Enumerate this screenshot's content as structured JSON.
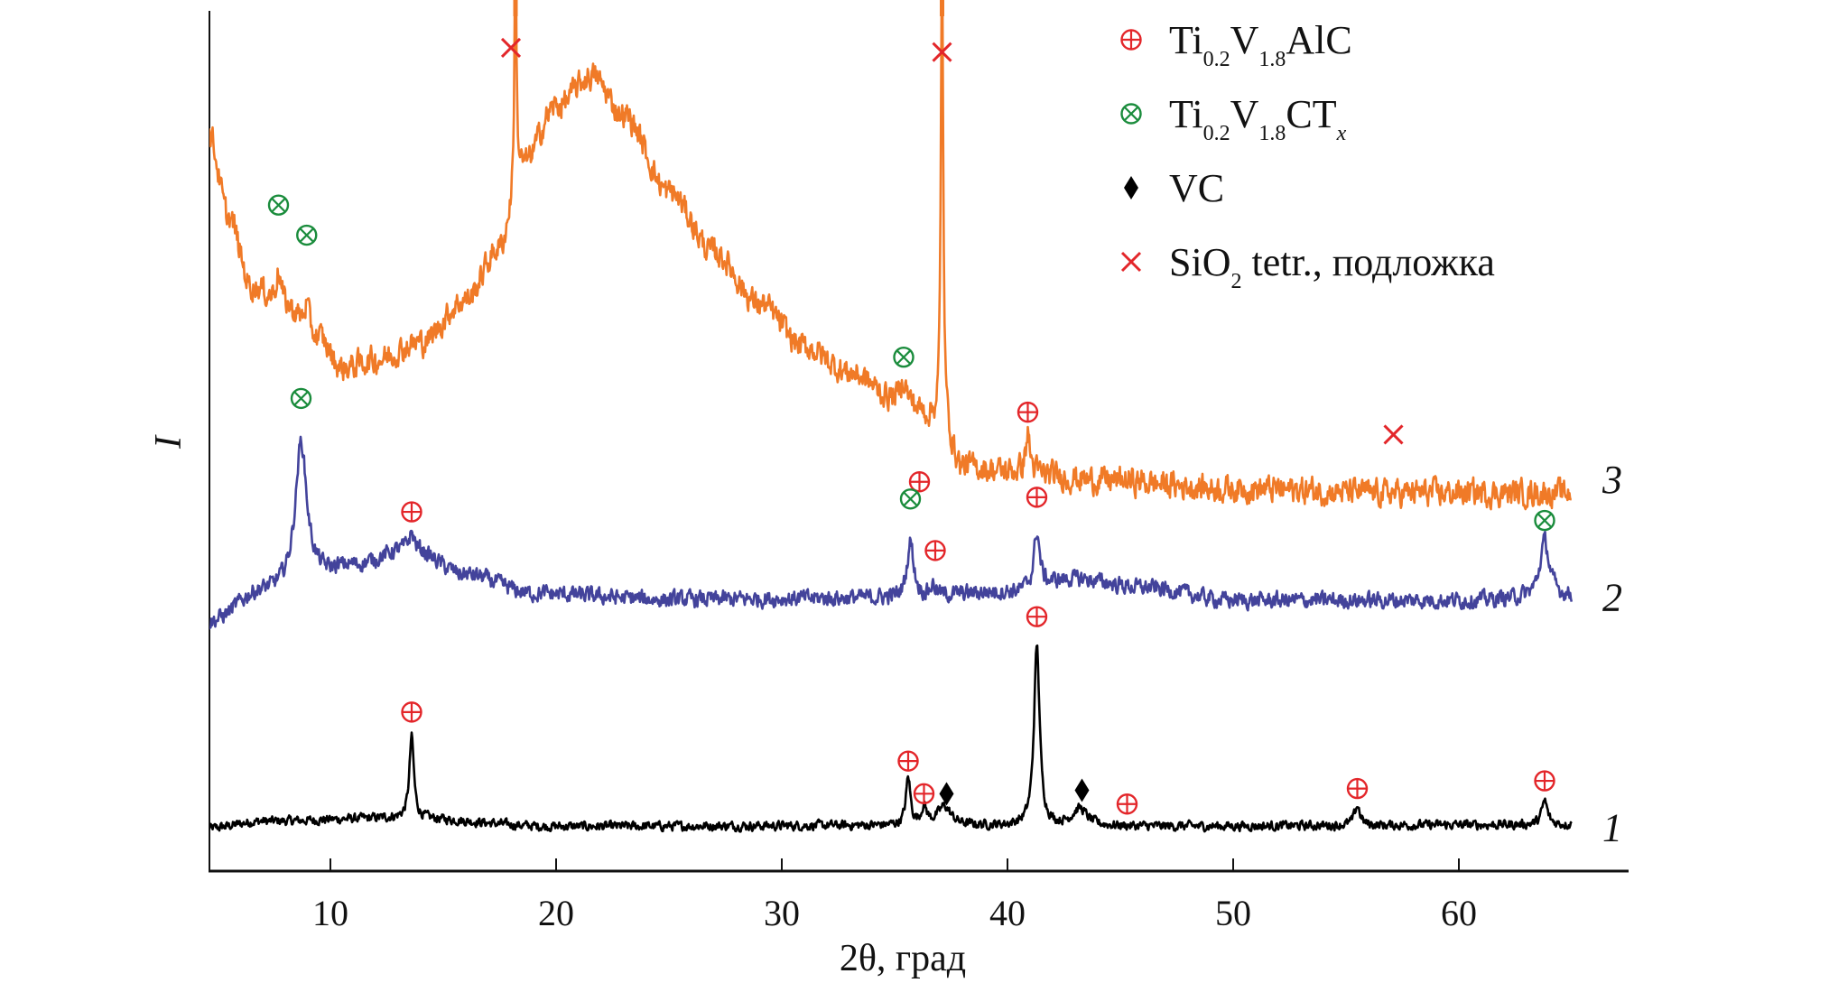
{
  "chart_data": {
    "type": "line",
    "title": "",
    "xlabel": "2θ, град",
    "ylabel": "I",
    "xlim": [
      4.6,
      67.2
    ],
    "ylim": [
      0,
      100
    ],
    "xticks": [
      10,
      20,
      30,
      40,
      50,
      60
    ],
    "grid": false,
    "legend_placement": "top-right",
    "legend": [
      {
        "symbol": "circle-plus",
        "color": "#e3262a",
        "parts": [
          [
            "Ti",
            ""
          ],
          [
            "0.2",
            "sub"
          ],
          [
            "V",
            ""
          ],
          [
            "1.8",
            "sub"
          ],
          [
            "AlC",
            ""
          ]
        ]
      },
      {
        "symbol": "circle-times",
        "color": "#1a8c3c",
        "parts": [
          [
            "Ti",
            ""
          ],
          [
            "0.2",
            "sub"
          ],
          [
            "V",
            ""
          ],
          [
            "1.8",
            "sub"
          ],
          [
            "CT",
            ""
          ],
          [
            "x",
            "subi"
          ]
        ]
      },
      {
        "symbol": "diamond",
        "color": "#000000",
        "parts": [
          [
            "VC",
            ""
          ]
        ]
      },
      {
        "symbol": "cross",
        "color": "#e3262a",
        "parts": [
          [
            "SiO",
            ""
          ],
          [
            "2",
            "sub"
          ],
          [
            " tetr., подложка",
            ""
          ]
        ]
      }
    ],
    "series": [
      {
        "name": "1",
        "label": "1",
        "color": "#000000",
        "x_range": [
          4.6,
          65
        ],
        "baseline": [
          [
            4.6,
            5.0
          ],
          [
            7,
            5.8
          ],
          [
            13,
            6.2
          ],
          [
            20,
            5.2
          ],
          [
            35,
            5.3
          ],
          [
            45,
            5.2
          ],
          [
            65,
            5.4
          ]
        ],
        "peaks": [
          {
            "x": 13.6,
            "height": 9.5,
            "width": 0.12
          },
          {
            "x": 35.6,
            "height": 5.5,
            "width": 0.12
          },
          {
            "x": 36.3,
            "height": 2.0,
            "width": 0.15
          },
          {
            "x": 37.2,
            "height": 2.2,
            "width": 0.35
          },
          {
            "x": 41.3,
            "height": 21.0,
            "width": 0.15
          },
          {
            "x": 43.2,
            "height": 2.0,
            "width": 0.4
          },
          {
            "x": 55.5,
            "height": 2.3,
            "width": 0.15
          },
          {
            "x": 63.8,
            "height": 2.8,
            "width": 0.15
          }
        ],
        "noise": 0.45
      },
      {
        "name": "2",
        "label": "2",
        "color": "#43439b",
        "x_range": [
          4.6,
          65
        ],
        "baseline": [
          [
            4.6,
            29.0
          ],
          [
            7,
            32.5
          ],
          [
            9.5,
            34.5
          ],
          [
            11,
            35.5
          ],
          [
            13.5,
            37.5
          ],
          [
            16,
            34.5
          ],
          [
            19,
            32.3
          ],
          [
            25,
            31.6
          ],
          [
            35,
            31.8
          ],
          [
            40,
            32.5
          ],
          [
            43,
            34
          ],
          [
            46,
            33
          ],
          [
            50,
            31.5
          ],
          [
            60,
            31.5
          ],
          [
            65,
            32
          ]
        ],
        "peaks": [
          {
            "x": 8.7,
            "height": 16.0,
            "width": 0.3
          },
          {
            "x": 13.6,
            "height": 1.8,
            "width": 0.15
          },
          {
            "x": 35.7,
            "height": 6.5,
            "width": 0.18
          },
          {
            "x": 36.7,
            "height": 1.2,
            "width": 0.15
          },
          {
            "x": 41.3,
            "height": 6.5,
            "width": 0.15
          },
          {
            "x": 63.8,
            "height": 6.5,
            "width": 0.25
          }
        ],
        "noise": 0.8
      },
      {
        "name": "3",
        "label": "3",
        "color": "#f07a27",
        "x_range": [
          4.6,
          65
        ],
        "baseline": [
          [
            4.6,
            86.0
          ],
          [
            5.5,
            76.0
          ],
          [
            6.5,
            68.0
          ],
          [
            8,
            65.5
          ],
          [
            9.5,
            62.0
          ],
          [
            10.5,
            58.5
          ],
          [
            12,
            59.5
          ],
          [
            14,
            61.5
          ],
          [
            16,
            66.5
          ],
          [
            17.5,
            72.5
          ],
          [
            18.5,
            82.0
          ],
          [
            20,
            89.0
          ],
          [
            21.6,
            92.5
          ],
          [
            23,
            88.0
          ],
          [
            25,
            79.0
          ],
          [
            27,
            72.0
          ],
          [
            29,
            66.0
          ],
          [
            31,
            61.0
          ],
          [
            33,
            58.0
          ],
          [
            35,
            55.0
          ],
          [
            37,
            52.5
          ],
          [
            38,
            47.0
          ],
          [
            40,
            46.5
          ],
          [
            44,
            45.5
          ],
          [
            50,
            44.5
          ],
          [
            57,
            44.0
          ],
          [
            65,
            44.0
          ]
        ],
        "peaks": [
          {
            "x": 7.7,
            "height": 4.0,
            "width": 0.15
          },
          {
            "x": 8.95,
            "height": 3.0,
            "width": 0.12
          },
          {
            "x": 18.2,
            "height": 30.0,
            "width": 0.05
          },
          {
            "x": 35.4,
            "height": 2.5,
            "width": 0.15
          },
          {
            "x": 37.1,
            "height": 55.0,
            "width": 0.06
          },
          {
            "x": 40.9,
            "height": 4.5,
            "width": 0.12
          }
        ],
        "noise": 1.3
      }
    ],
    "annotations": [
      {
        "series": "3",
        "symbol": "circle-times",
        "x": 7.7,
        "y": 77.5
      },
      {
        "series": "3",
        "symbol": "circle-times",
        "x": 8.95,
        "y": 74.0
      },
      {
        "series": "3",
        "symbol": "cross",
        "x": 18.0,
        "y": 95.8
      },
      {
        "series": "3",
        "symbol": "cross",
        "x": 37.1,
        "y": 95.3
      },
      {
        "series": "3",
        "symbol": "circle-times",
        "x": 35.4,
        "y": 59.8
      },
      {
        "series": "3",
        "symbol": "circle-plus",
        "x": 40.9,
        "y": 53.4
      },
      {
        "series": "3",
        "symbol": "cross",
        "x": 57.1,
        "y": 50.8
      },
      {
        "series": "2",
        "symbol": "circle-times",
        "x": 8.7,
        "y": 55.0
      },
      {
        "series": "2",
        "symbol": "circle-plus",
        "x": 13.6,
        "y": 41.8
      },
      {
        "series": "2",
        "symbol": "circle-plus",
        "x": 36.1,
        "y": 45.3
      },
      {
        "series": "2",
        "symbol": "circle-times",
        "x": 35.7,
        "y": 43.3
      },
      {
        "series": "2",
        "symbol": "circle-plus",
        "x": 36.8,
        "y": 37.3
      },
      {
        "series": "2",
        "symbol": "circle-plus",
        "x": 41.3,
        "y": 43.5
      },
      {
        "series": "2",
        "symbol": "circle-times",
        "x": 63.8,
        "y": 40.8
      },
      {
        "series": "1",
        "symbol": "circle-plus",
        "x": 41.3,
        "y": 29.6
      },
      {
        "series": "1",
        "symbol": "circle-plus",
        "x": 13.6,
        "y": 18.5
      },
      {
        "series": "1",
        "symbol": "circle-plus",
        "x": 35.6,
        "y": 12.8
      },
      {
        "series": "1",
        "symbol": "circle-plus",
        "x": 36.3,
        "y": 9.0
      },
      {
        "series": "1",
        "symbol": "diamond",
        "x": 37.3,
        "y": 9.0
      },
      {
        "series": "1",
        "symbol": "diamond",
        "x": 43.3,
        "y": 9.4
      },
      {
        "series": "1",
        "symbol": "circle-plus",
        "x": 45.3,
        "y": 7.8
      },
      {
        "series": "1",
        "symbol": "circle-plus",
        "x": 55.5,
        "y": 9.6
      },
      {
        "series": "1",
        "symbol": "circle-plus",
        "x": 63.8,
        "y": 10.5
      }
    ],
    "clipped_peak_marks": [
      18.2,
      37.1
    ]
  }
}
